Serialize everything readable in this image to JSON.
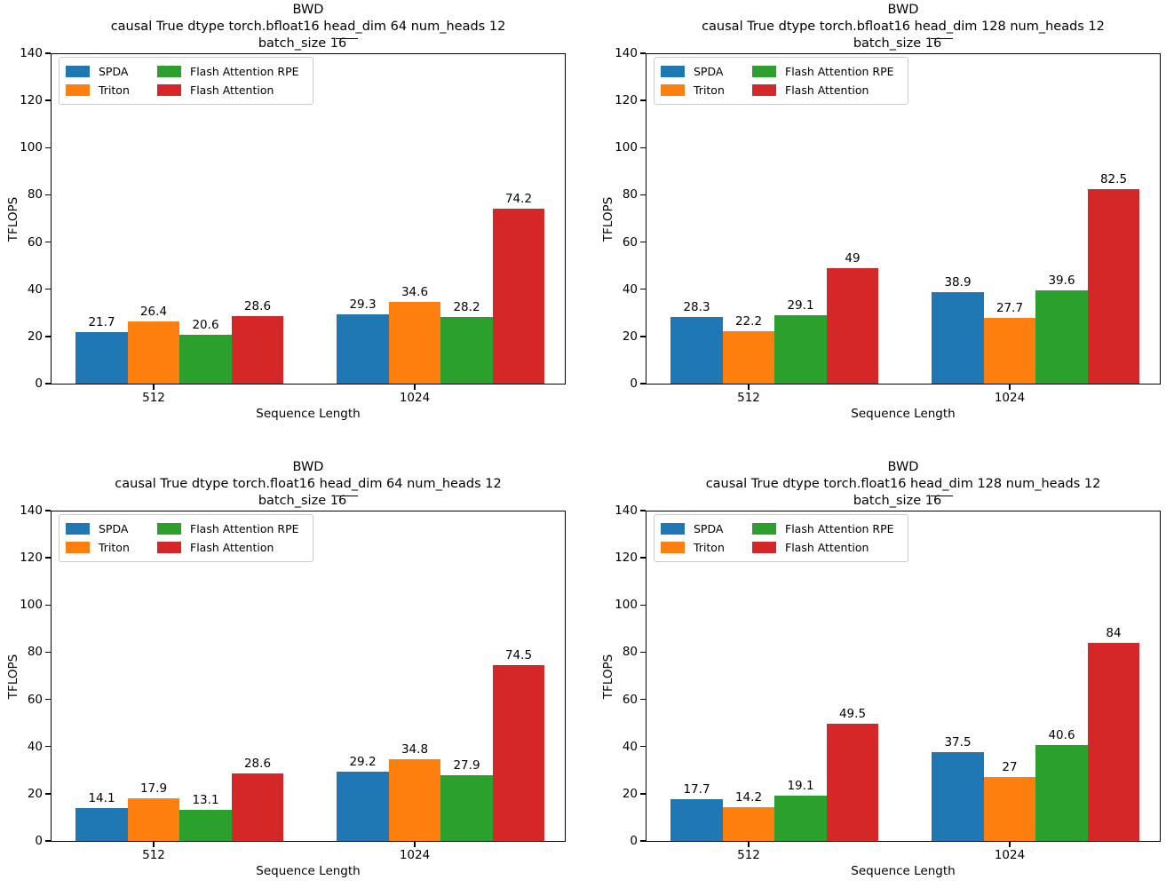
{
  "page": {
    "background": "#ffffff"
  },
  "chart_data": [
    {
      "type": "bar",
      "title_lines": [
        "BWD",
        "causal True dtype torch.bfloat16 head_dim 64 num_heads 12",
        "batch_size 16"
      ],
      "xlabel": "Sequence Length",
      "ylabel": "TFLOPS",
      "categories": [
        "512",
        "1024"
      ],
      "ylim": [
        0,
        140
      ],
      "yticks": [
        0,
        20,
        40,
        60,
        80,
        100,
        120,
        140
      ],
      "grid": false,
      "legend_position": "upper left",
      "legend_columns": 2,
      "series": [
        {
          "name": "SPDA",
          "color": "#1f77b4",
          "values": [
            21.7,
            29.3
          ],
          "value_labels": [
            "21.7",
            "29.3"
          ]
        },
        {
          "name": "Triton",
          "color": "#ff7f0e",
          "values": [
            26.4,
            34.6
          ],
          "value_labels": [
            "26.4",
            "34.6"
          ]
        },
        {
          "name": "Flash Attention RPE",
          "color": "#2ca02c",
          "values": [
            20.6,
            28.2
          ],
          "value_labels": [
            "20.6",
            "28.2"
          ]
        },
        {
          "name": "Flash Attention",
          "color": "#d62728",
          "values": [
            28.6,
            74.2
          ],
          "value_labels": [
            "28.6",
            "74.2"
          ]
        }
      ]
    },
    {
      "type": "bar",
      "title_lines": [
        "BWD",
        "causal True dtype torch.bfloat16 head_dim 128 num_heads 12",
        "batch_size 16"
      ],
      "xlabel": "Sequence Length",
      "ylabel": "TFLOPS",
      "categories": [
        "512",
        "1024"
      ],
      "ylim": [
        0,
        140
      ],
      "yticks": [
        0,
        20,
        40,
        60,
        80,
        100,
        120,
        140
      ],
      "grid": false,
      "legend_position": "upper left",
      "legend_columns": 2,
      "series": [
        {
          "name": "SPDA",
          "color": "#1f77b4",
          "values": [
            28.3,
            38.9
          ],
          "value_labels": [
            "28.3",
            "38.9"
          ]
        },
        {
          "name": "Triton",
          "color": "#ff7f0e",
          "values": [
            22.2,
            27.7
          ],
          "value_labels": [
            "22.2",
            "27.7"
          ]
        },
        {
          "name": "Flash Attention RPE",
          "color": "#2ca02c",
          "values": [
            29.1,
            39.6
          ],
          "value_labels": [
            "29.1",
            "39.6"
          ]
        },
        {
          "name": "Flash Attention",
          "color": "#d62728",
          "values": [
            49,
            82.5
          ],
          "value_labels": [
            "49",
            "82.5"
          ]
        }
      ]
    },
    {
      "type": "bar",
      "title_lines": [
        "BWD",
        "causal True dtype torch.float16 head_dim 64 num_heads 12",
        "batch_size 16"
      ],
      "xlabel": "Sequence Length",
      "ylabel": "TFLOPS",
      "categories": [
        "512",
        "1024"
      ],
      "ylim": [
        0,
        140
      ],
      "yticks": [
        0,
        20,
        40,
        60,
        80,
        100,
        120,
        140
      ],
      "grid": false,
      "legend_position": "upper left",
      "legend_columns": 2,
      "series": [
        {
          "name": "SPDA",
          "color": "#1f77b4",
          "values": [
            14.1,
            29.2
          ],
          "value_labels": [
            "14.1",
            "29.2"
          ]
        },
        {
          "name": "Triton",
          "color": "#ff7f0e",
          "values": [
            17.9,
            34.8
          ],
          "value_labels": [
            "17.9",
            "34.8"
          ]
        },
        {
          "name": "Flash Attention RPE",
          "color": "#2ca02c",
          "values": [
            13.1,
            27.9
          ],
          "value_labels": [
            "13.1",
            "27.9"
          ]
        },
        {
          "name": "Flash Attention",
          "color": "#d62728",
          "values": [
            28.6,
            74.5
          ],
          "value_labels": [
            "28.6",
            "74.5"
          ]
        }
      ]
    },
    {
      "type": "bar",
      "title_lines": [
        "BWD",
        "causal True dtype torch.float16 head_dim 128 num_heads 12",
        "batch_size 16"
      ],
      "xlabel": "Sequence Length",
      "ylabel": "TFLOPS",
      "categories": [
        "512",
        "1024"
      ],
      "ylim": [
        0,
        140
      ],
      "yticks": [
        0,
        20,
        40,
        60,
        80,
        100,
        120,
        140
      ],
      "grid": false,
      "legend_position": "upper left",
      "legend_columns": 2,
      "series": [
        {
          "name": "SPDA",
          "color": "#1f77b4",
          "values": [
            17.7,
            37.5
          ],
          "value_labels": [
            "17.7",
            "37.5"
          ]
        },
        {
          "name": "Triton",
          "color": "#ff7f0e",
          "values": [
            14.2,
            27
          ],
          "value_labels": [
            "14.2",
            "27"
          ]
        },
        {
          "name": "Flash Attention RPE",
          "color": "#2ca02c",
          "values": [
            19.1,
            40.6
          ],
          "value_labels": [
            "19.1",
            "40.6"
          ]
        },
        {
          "name": "Flash Attention",
          "color": "#d62728",
          "values": [
            49.5,
            84
          ],
          "value_labels": [
            "49.5",
            "84"
          ]
        }
      ]
    }
  ]
}
